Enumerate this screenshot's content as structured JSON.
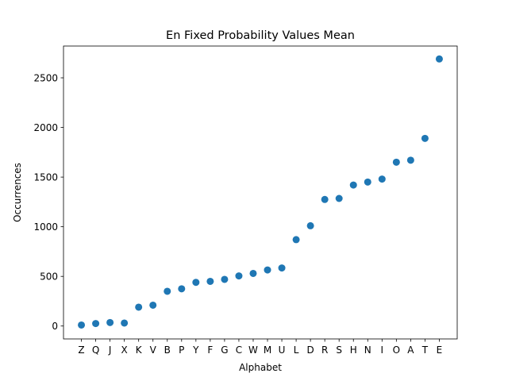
{
  "chart_data": {
    "type": "scatter",
    "title": "En Fixed Probability Values Mean",
    "xlabel": "Alphabet",
    "ylabel": "Occurrences",
    "grid": false,
    "legend": "none",
    "ylim": [
      -130,
      2820
    ],
    "yticks": [
      0,
      500,
      1000,
      1500,
      2000,
      2500
    ],
    "categories": [
      "Z",
      "Q",
      "J",
      "X",
      "K",
      "V",
      "B",
      "P",
      "Y",
      "F",
      "G",
      "C",
      "W",
      "M",
      "U",
      "L",
      "D",
      "R",
      "S",
      "H",
      "N",
      "I",
      "O",
      "A",
      "T",
      "E"
    ],
    "series": [
      {
        "color": "#1f77b4",
        "values": [
          10,
          25,
          35,
          30,
          190,
          210,
          350,
          375,
          440,
          450,
          470,
          505,
          530,
          565,
          585,
          870,
          1010,
          1275,
          1285,
          1420,
          1450,
          1480,
          1650,
          1670,
          1890,
          2690
        ]
      }
    ]
  }
}
